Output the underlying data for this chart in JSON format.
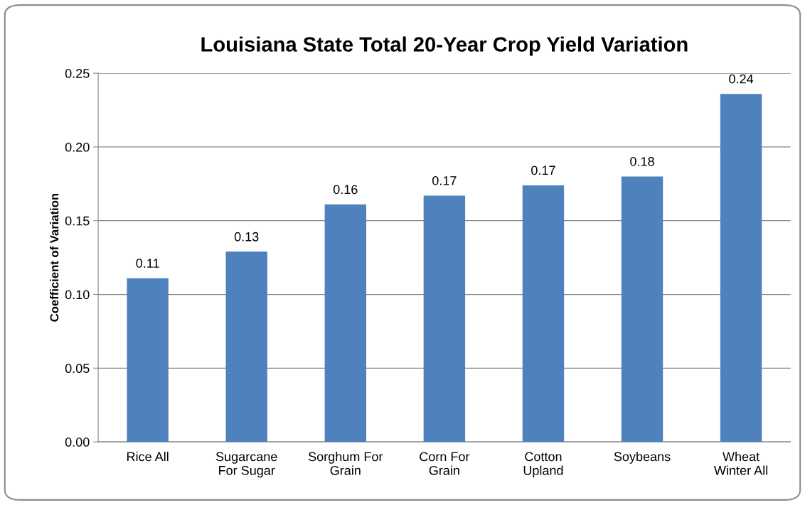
{
  "chart_data": {
    "type": "bar",
    "title": "Louisiana State Total 20-Year Crop Yield Variation",
    "ylabel": "Coefficient of Variation",
    "categories": [
      "Rice All",
      "Sugarcane\nFor Sugar",
      "Sorghum For\nGrain",
      "Corn For\nGrain",
      "Cotton\nUpland",
      "Soybeans",
      "Wheat\nWinter All"
    ],
    "values": [
      0.111,
      0.129,
      0.161,
      0.167,
      0.174,
      0.18,
      0.236
    ],
    "value_labels": [
      "0.11",
      "0.13",
      "0.16",
      "0.17",
      "0.17",
      "0.18",
      "0.24"
    ],
    "color": "#4f81bd",
    "ylim": [
      0,
      0.25
    ],
    "yticks": [
      {
        "value": 0,
        "label": "0.00"
      },
      {
        "value": 0.05,
        "label": "0.05"
      },
      {
        "value": 0.1,
        "label": "0.10"
      },
      {
        "value": 0.15,
        "label": "0.15"
      },
      {
        "value": 0.2,
        "label": "0.20"
      },
      {
        "value": 0.25,
        "label": "0.25"
      }
    ],
    "grid": "y"
  }
}
